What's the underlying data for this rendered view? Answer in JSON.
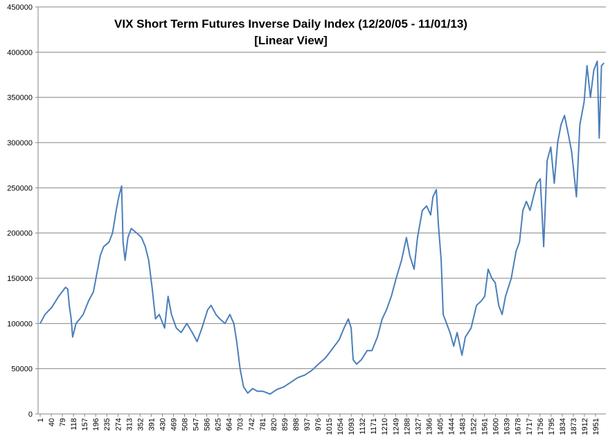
{
  "chart_data": {
    "type": "line",
    "title": "VIX  Short Term Futures Inverse Daily Index (12/20/05 - 11/01/13)",
    "subtitle": "[Linear View]",
    "x": [
      1,
      18,
      42,
      66,
      90,
      98,
      103,
      110,
      115,
      127,
      140,
      152,
      171,
      188,
      200,
      212,
      224,
      243,
      255,
      268,
      277,
      287,
      292,
      299,
      309,
      321,
      340,
      357,
      370,
      382,
      394,
      406,
      419,
      438,
      450,
      462,
      479,
      496,
      516,
      535,
      552,
      569,
      589,
      601,
      618,
      632,
      650,
      667,
      681,
      691,
      703,
      715,
      730,
      747,
      764,
      783,
      808,
      832,
      857,
      881,
      905,
      930,
      954,
      978,
      1003,
      1027,
      1051,
      1068,
      1083,
      1093,
      1100,
      1112,
      1129,
      1149,
      1166,
      1185,
      1202,
      1217,
      1234,
      1251,
      1270,
      1287,
      1299,
      1314,
      1326,
      1343,
      1358,
      1372,
      1380,
      1392,
      1399,
      1409,
      1416,
      1428,
      1440,
      1453,
      1465,
      1482,
      1494,
      1514,
      1533,
      1550,
      1562,
      1574,
      1587,
      1599,
      1611,
      1623,
      1635,
      1655,
      1672,
      1684,
      1696,
      1708,
      1721,
      1733,
      1745,
      1757,
      1769,
      1781,
      1794,
      1806,
      1818,
      1830,
      1842,
      1855,
      1867,
      1884,
      1896,
      1911,
      1921,
      1933,
      1945,
      1957,
      1964,
      1972,
      1981
    ],
    "series": [
      {
        "name": "VIX Short Term Futures Inverse Daily Index",
        "color": "#4a7ebb",
        "values": [
          100000,
          110000,
          118000,
          130000,
          140000,
          138000,
          120000,
          105000,
          85000,
          100000,
          105000,
          110000,
          125000,
          135000,
          155000,
          175000,
          185000,
          190000,
          200000,
          225000,
          240000,
          252000,
          190000,
          170000,
          195000,
          205000,
          200000,
          195000,
          185000,
          170000,
          140000,
          105000,
          110000,
          95000,
          130000,
          110000,
          95000,
          90000,
          100000,
          90000,
          80000,
          95000,
          115000,
          120000,
          110000,
          105000,
          100000,
          110000,
          100000,
          80000,
          50000,
          30000,
          23000,
          28000,
          25000,
          25000,
          22000,
          27000,
          30000,
          35000,
          40000,
          43000,
          48000,
          55000,
          62000,
          72000,
          82000,
          95000,
          105000,
          95000,
          60000,
          55000,
          60000,
          70000,
          70000,
          85000,
          105000,
          115000,
          130000,
          150000,
          170000,
          195000,
          175000,
          160000,
          195000,
          225000,
          230000,
          220000,
          240000,
          248000,
          210000,
          170000,
          110000,
          100000,
          90000,
          75000,
          90000,
          65000,
          85000,
          95000,
          120000,
          125000,
          130000,
          160000,
          150000,
          145000,
          120000,
          110000,
          130000,
          150000,
          180000,
          190000,
          225000,
          235000,
          225000,
          240000,
          255000,
          260000,
          185000,
          280000,
          295000,
          255000,
          300000,
          320000,
          330000,
          310000,
          290000,
          240000,
          320000,
          345000,
          385000,
          350000,
          380000,
          390000,
          305000,
          385000,
          388000
        ]
      }
    ],
    "xlim": [
      1,
      1981
    ],
    "xticks": [
      1,
      40,
      79,
      118,
      157,
      196,
      235,
      274,
      313,
      352,
      391,
      430,
      469,
      508,
      547,
      586,
      625,
      664,
      703,
      742,
      781,
      820,
      859,
      898,
      937,
      976,
      1015,
      1054,
      1093,
      1132,
      1171,
      1210,
      1249,
      1288,
      1327,
      1366,
      1405,
      1444,
      1483,
      1522,
      1561,
      1600,
      1639,
      1678,
      1717,
      1756,
      1795,
      1834,
      1873,
      1912,
      1951
    ],
    "ylim": [
      0,
      450000
    ],
    "yticks": [
      0,
      50000,
      100000,
      150000,
      200000,
      250000,
      300000,
      350000,
      400000,
      450000
    ],
    "grid": true
  }
}
